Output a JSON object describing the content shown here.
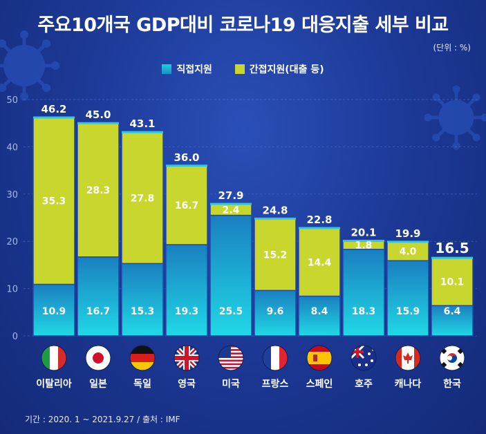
{
  "title": "주요10개국 GDP대비 코로나19 대응지출 세부 비교",
  "unit_label": "(단위 : %)",
  "footer": "기간 : 2020. 1 ~ 2021.9.27 / 출처 : IMF",
  "colors": {
    "direct_top": "#20d8e6",
    "direct_bottom": "#1a7fc0",
    "indirect": "#c8d62e",
    "bar_outline": "#1f4aa6"
  },
  "chart_data": {
    "type": "bar",
    "stacked": true,
    "categories": [
      "이탈리아",
      "일본",
      "독일",
      "영국",
      "미국",
      "프랑스",
      "스페인",
      "호주",
      "캐나다",
      "한국"
    ],
    "series": [
      {
        "name": "직접지원",
        "values": [
          10.9,
          16.7,
          15.3,
          19.3,
          25.5,
          9.6,
          8.4,
          18.3,
          15.9,
          6.4
        ]
      },
      {
        "name": "간접지원(대출 등)",
        "values": [
          35.3,
          28.3,
          27.8,
          16.7,
          2.4,
          15.2,
          14.4,
          1.8,
          4.0,
          10.1
        ]
      }
    ],
    "totals": [
      "46.2",
      "45.0",
      "43.1",
      "36.0",
      "27.9",
      "24.8",
      "22.8",
      "20.1",
      "19.9",
      "16.5"
    ],
    "direct_labels": [
      "10.9",
      "16.7",
      "15.3",
      "19.3",
      "25.5",
      "9.6",
      "8.4",
      "18.3",
      "15.9",
      "6.4"
    ],
    "indirect_labels": [
      "35.3",
      "28.3",
      "27.8",
      "16.7",
      "2.4",
      "15.2",
      "14.4",
      "1.8",
      "4.0",
      "10.1"
    ],
    "highlight": "한국",
    "yticks": [
      "0",
      "10",
      "20",
      "30",
      "40",
      "50"
    ],
    "ylim": [
      0,
      50
    ],
    "flags": [
      "italy-flag",
      "japan-flag",
      "germany-flag",
      "uk-flag",
      "usa-flag",
      "france-flag",
      "spain-flag",
      "australia-flag",
      "canada-flag",
      "korea-flag"
    ]
  }
}
